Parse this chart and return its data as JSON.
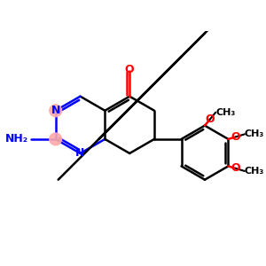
{
  "bg_color": "#ffffff",
  "bond_color": "#000000",
  "n_color": "#0000ff",
  "o_color": "#ff0000",
  "highlight_color": "#ffaaaa",
  "bond_width": 1.8,
  "figsize": [
    3.0,
    3.0
  ],
  "dpi": 100,
  "xlim": [
    0,
    12
  ],
  "ylim": [
    0,
    10
  ],
  "font_size": 9
}
